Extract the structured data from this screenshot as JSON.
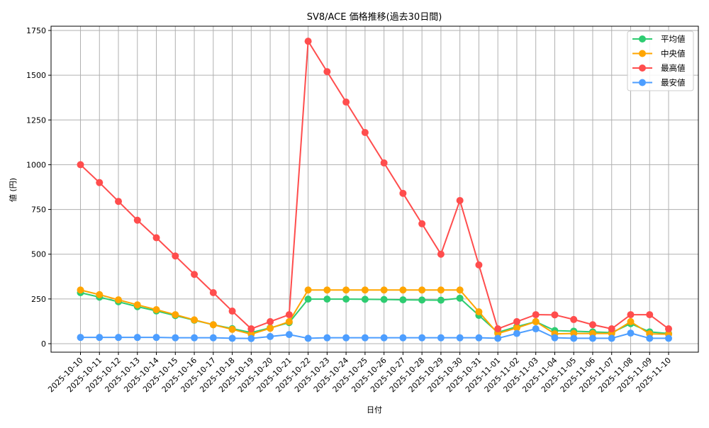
{
  "chart_data": {
    "type": "line",
    "title": "SV8/ACE 価格推移(過去30日間)",
    "xlabel": "日付",
    "ylabel": "値 (円)",
    "ylim": [
      -50,
      1780
    ],
    "yticks": [
      0,
      250,
      500,
      750,
      1000,
      1250,
      1500,
      1750
    ],
    "grid": true,
    "legend_position": "upper right",
    "x": [
      "2025-10-10",
      "2025-10-11",
      "2025-10-12",
      "2025-10-13",
      "2025-10-14",
      "2025-10-15",
      "2025-10-16",
      "2025-10-17",
      "2025-10-18",
      "2025-10-19",
      "2025-10-20",
      "2025-10-21",
      "2025-10-22",
      "2025-10-23",
      "2025-10-24",
      "2025-10-25",
      "2025-10-26",
      "2025-10-27",
      "2025-10-28",
      "2025-10-29",
      "2025-10-30",
      "2025-10-31",
      "2025-11-01",
      "2025-11-02",
      "2025-11-03",
      "2025-11-04",
      "2025-11-05",
      "2025-11-06",
      "2025-11-07",
      "2025-11-08",
      "2025-11-09",
      "2025-11-10"
    ],
    "series": [
      {
        "name": "平均値",
        "color": "#2ecc71",
        "values": [
          285,
          260,
          234,
          207,
          183,
          157,
          131,
          106,
          84,
          62,
          88,
          118,
          249,
          249,
          249,
          248,
          247,
          245,
          244,
          243,
          254,
          158,
          63,
          95,
          123,
          73,
          70,
          66,
          62,
          112,
          66,
          57
        ]
      },
      {
        "name": "中央値",
        "color": "#ffa500",
        "values": [
          300,
          274,
          245,
          217,
          190,
          162,
          133,
          106,
          80,
          53,
          86,
          123,
          300,
          300,
          300,
          300,
          300,
          300,
          300,
          300,
          300,
          178,
          57,
          88,
          123,
          55,
          57,
          57,
          57,
          123,
          55,
          53
        ]
      },
      {
        "name": "最高値",
        "color": "#ff4d4d",
        "values": [
          1000,
          900,
          795,
          690,
          592,
          490,
          387,
          285,
          182,
          83,
          123,
          162,
          1690,
          1520,
          1350,
          1180,
          1010,
          840,
          670,
          500,
          800,
          440,
          83,
          123,
          162,
          161,
          135,
          106,
          83,
          162,
          162,
          83
        ]
      },
      {
        "name": "最安値",
        "color": "#4d9eff",
        "values": [
          35,
          35,
          35,
          35,
          35,
          33,
          33,
          33,
          30,
          29,
          40,
          51,
          30,
          33,
          33,
          33,
          33,
          33,
          33,
          33,
          33,
          33,
          30,
          57,
          83,
          33,
          30,
          30,
          30,
          59,
          30,
          30
        ]
      }
    ]
  }
}
